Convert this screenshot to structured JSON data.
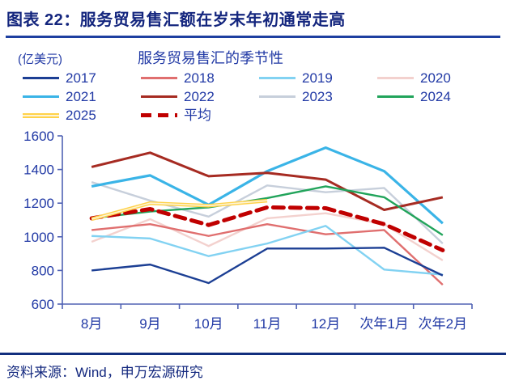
{
  "header": {
    "title": "图表 22：服务贸易售汇额在岁末年初通常走高"
  },
  "chart": {
    "unit_label": "(亿美元)",
    "title": "服务贸易售汇的季节性"
  },
  "chart_data": {
    "type": "line",
    "title": "服务贸易售汇的季节性",
    "unit": "亿美元",
    "categories": [
      "8月",
      "9月",
      "10月",
      "11月",
      "12月",
      "次年1月",
      "次年2月"
    ],
    "ylim": [
      600,
      1600
    ],
    "ytick_step": 200,
    "grid": false,
    "legend_position": "top",
    "series": [
      {
        "name": "2017",
        "color": "#1C3F94",
        "values": [
          800,
          835,
          725,
          930,
          930,
          935,
          770
        ]
      },
      {
        "name": "2018",
        "color": "#E06F6F",
        "values": [
          1040,
          1075,
          1005,
          1075,
          1015,
          1040,
          715
        ]
      },
      {
        "name": "2019",
        "color": "#82D2F2",
        "values": [
          1005,
          990,
          885,
          960,
          1065,
          805,
          775
        ]
      },
      {
        "name": "2020",
        "color": "#F3D1CE",
        "values": [
          970,
          1105,
          945,
          1110,
          1140,
          1075,
          860
        ]
      },
      {
        "name": "2021",
        "color": "#3AB4E7",
        "values": [
          1300,
          1365,
          1190,
          1390,
          1530,
          1390,
          1080
        ]
      },
      {
        "name": "2022",
        "color": "#A62B22",
        "values": [
          1415,
          1500,
          1360,
          1380,
          1340,
          1160,
          1235
        ]
      },
      {
        "name": "2023",
        "color": "#C7CFDB",
        "values": [
          1325,
          1215,
          1120,
          1305,
          1265,
          1290,
          960
        ]
      },
      {
        "name": "2024",
        "color": "#22A45B",
        "values": [
          1110,
          1150,
          1175,
          1230,
          1300,
          1235,
          1010
        ]
      },
      {
        "name": "2025",
        "color": "#FFD24A",
        "style": "double",
        "values": [
          1105,
          1200,
          1185,
          1215
        ]
      },
      {
        "name": "平均",
        "color": "#C00000",
        "dashed": true,
        "values": [
          1110,
          1165,
          1070,
          1175,
          1170,
          1075,
          920
        ]
      }
    ]
  },
  "footer": {
    "source": "资料来源：Wind，申万宏源研究"
  },
  "colors": {
    "title_text": "#14267E",
    "accent_rule": "#1d3fa0",
    "label_text": "#2139A5",
    "axis_line": "#5062B4",
    "footer_rule": "#122F7E"
  }
}
